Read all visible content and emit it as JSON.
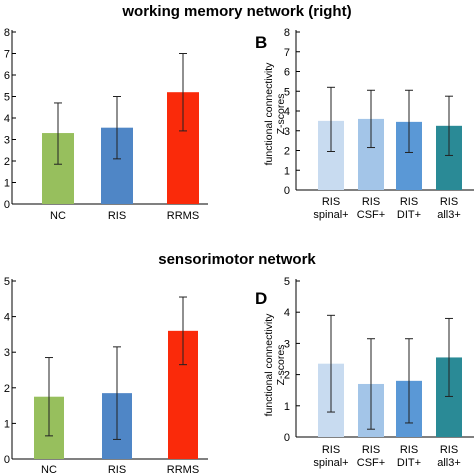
{
  "section_titles": {
    "top": "working memory network (right)",
    "bottom": "sensorimotor network"
  },
  "panel_letters": {
    "B": "B",
    "D": "D"
  },
  "y_axis_label": {
    "line1": "functional connectivity",
    "line2": "Z-scores"
  },
  "colors": {
    "NC": "#97bf5d",
    "RIS": "#4f86c6",
    "RRMS": "#fa2a0a",
    "RIS_spinal": "#c8dbf0",
    "RIS_CSF": "#a3c5e8",
    "RIS_DIT": "#5a98d6",
    "RIS_all3": "#2a8a96",
    "axis": "#000000"
  },
  "chart_data": [
    {
      "id": "A",
      "type": "bar",
      "categories": [
        "NC",
        "RIS",
        "RRMS"
      ],
      "values": [
        3.3,
        3.55,
        5.2
      ],
      "error_low": [
        1.85,
        2.1,
        3.4
      ],
      "error_high": [
        4.7,
        5.0,
        7.0
      ],
      "ylim": [
        0,
        8
      ],
      "yticks": [
        "0",
        "1",
        "2",
        "3",
        "4",
        "5",
        "6",
        "7",
        "8"
      ],
      "color_keys": [
        "NC",
        "RIS",
        "RRMS"
      ]
    },
    {
      "id": "B",
      "type": "bar",
      "categories": [
        [
          "RIS",
          "spinal+"
        ],
        [
          "RIS",
          "CSF+"
        ],
        [
          "RIS",
          "DIT+"
        ],
        [
          "RIS",
          "all3+"
        ]
      ],
      "values": [
        3.5,
        3.6,
        3.45,
        3.25
      ],
      "error_low": [
        1.95,
        2.15,
        1.9,
        1.75
      ],
      "error_high": [
        5.2,
        5.05,
        5.05,
        4.75
      ],
      "ylim": [
        0,
        8
      ],
      "yticks": [
        "0",
        "1",
        "2",
        "3",
        "4",
        "5",
        "6",
        "7",
        "8"
      ],
      "color_keys": [
        "RIS_spinal",
        "RIS_CSF",
        "RIS_DIT",
        "RIS_all3"
      ]
    },
    {
      "id": "C",
      "type": "bar",
      "categories": [
        "NC",
        "RIS",
        "RRMS"
      ],
      "values": [
        1.75,
        1.85,
        3.6
      ],
      "error_low": [
        0.65,
        0.55,
        2.65
      ],
      "error_high": [
        2.85,
        3.15,
        4.55
      ],
      "ylim": [
        0,
        5
      ],
      "yticks": [
        "0",
        "1",
        "2",
        "3",
        "4",
        "5"
      ],
      "color_keys": [
        "NC",
        "RIS",
        "RRMS"
      ]
    },
    {
      "id": "D",
      "type": "bar",
      "categories": [
        [
          "RIS",
          "spinal+"
        ],
        [
          "RIS",
          "CSF+"
        ],
        [
          "RIS",
          "DIT+"
        ],
        [
          "RIS",
          "all3+"
        ]
      ],
      "values": [
        2.35,
        1.7,
        1.8,
        2.55
      ],
      "error_low": [
        0.8,
        0.25,
        0.45,
        1.3
      ],
      "error_high": [
        3.9,
        3.15,
        3.15,
        3.8
      ],
      "ylim": [
        0,
        5
      ],
      "yticks": [
        "0",
        "1",
        "2",
        "3",
        "4",
        "5"
      ],
      "color_keys": [
        "RIS_spinal",
        "RIS_CSF",
        "RIS_DIT",
        "RIS_all3"
      ]
    }
  ]
}
